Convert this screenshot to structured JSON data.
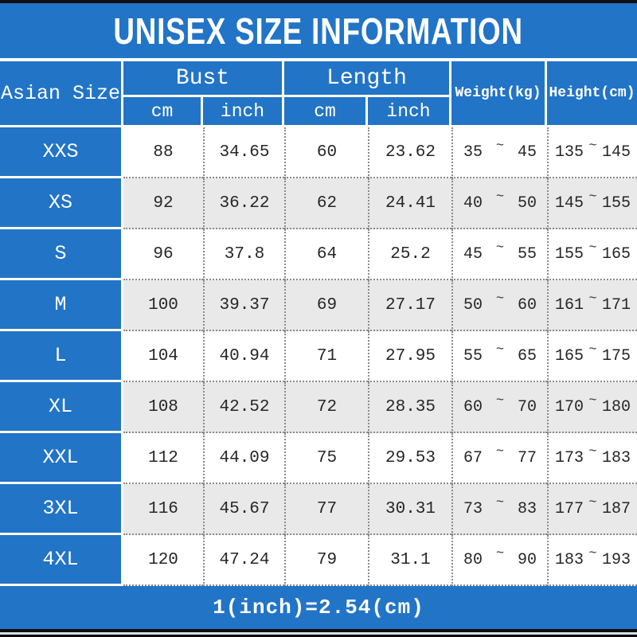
{
  "title": "UNISEX SIZE INFORMATION",
  "table": {
    "corner_header": "Asian Size",
    "bust_group": {
      "label": "Bust",
      "sub_cm": "cm",
      "sub_inch": "inch"
    },
    "length_group": {
      "label": "Length",
      "sub_cm": "cm",
      "sub_inch": "inch"
    },
    "weight_header": "Weight(kg)",
    "height_header": "Height(cm)",
    "range_separator": "~",
    "rows": [
      {
        "size": "XXS",
        "bust_cm": "88",
        "bust_inch": "34.65",
        "length_cm": "60",
        "length_inch": "23.62",
        "weight_min": "35",
        "weight_max": "45",
        "height_min": "135",
        "height_max": "145"
      },
      {
        "size": "XS",
        "bust_cm": "92",
        "bust_inch": "36.22",
        "length_cm": "62",
        "length_inch": "24.41",
        "weight_min": "40",
        "weight_max": "50",
        "height_min": "145",
        "height_max": "155"
      },
      {
        "size": "S",
        "bust_cm": "96",
        "bust_inch": "37.8",
        "length_cm": "64",
        "length_inch": "25.2",
        "weight_min": "45",
        "weight_max": "55",
        "height_min": "155",
        "height_max": "165"
      },
      {
        "size": "M",
        "bust_cm": "100",
        "bust_inch": "39.37",
        "length_cm": "69",
        "length_inch": "27.17",
        "weight_min": "50",
        "weight_max": "60",
        "height_min": "161",
        "height_max": "171"
      },
      {
        "size": "L",
        "bust_cm": "104",
        "bust_inch": "40.94",
        "length_cm": "71",
        "length_inch": "27.95",
        "weight_min": "55",
        "weight_max": "65",
        "height_min": "165",
        "height_max": "175"
      },
      {
        "size": "XL",
        "bust_cm": "108",
        "bust_inch": "42.52",
        "length_cm": "72",
        "length_inch": "28.35",
        "weight_min": "60",
        "weight_max": "70",
        "height_min": "170",
        "height_max": "180"
      },
      {
        "size": "XXL",
        "bust_cm": "112",
        "bust_inch": "44.09",
        "length_cm": "75",
        "length_inch": "29.53",
        "weight_min": "67",
        "weight_max": "77",
        "height_min": "173",
        "height_max": "183"
      },
      {
        "size": "3XL",
        "bust_cm": "116",
        "bust_inch": "45.67",
        "length_cm": "77",
        "length_inch": "30.31",
        "weight_min": "73",
        "weight_max": "83",
        "height_min": "177",
        "height_max": "187"
      },
      {
        "size": "4XL",
        "bust_cm": "120",
        "bust_inch": "47.24",
        "length_cm": "79",
        "length_inch": "31.1",
        "weight_min": "80",
        "weight_max": "90",
        "height_min": "183",
        "height_max": "193"
      }
    ]
  },
  "footer_note": "1(inch)=2.54(cm)",
  "colors": {
    "primary_blue": "#2274c6",
    "row_alt_gray": "#e9e9e9",
    "dotted_line": "#8a8a8a",
    "border_black": "#0f0f0f",
    "text_dark": "#262626",
    "text_white": "#ffffff"
  },
  "chart_data": {
    "type": "table",
    "title": "UNISEX SIZE INFORMATION",
    "columns": [
      "Asian Size",
      "Bust cm",
      "Bust inch",
      "Length cm",
      "Length inch",
      "Weight(kg)",
      "Height(cm)"
    ],
    "rows": [
      [
        "XXS",
        88,
        34.65,
        60,
        23.62,
        "35~45",
        "135~145"
      ],
      [
        "XS",
        92,
        36.22,
        62,
        24.41,
        "40~50",
        "145~155"
      ],
      [
        "S",
        96,
        37.8,
        64,
        25.2,
        "45~55",
        "155~165"
      ],
      [
        "M",
        100,
        39.37,
        69,
        27.17,
        "50~60",
        "161~171"
      ],
      [
        "L",
        104,
        40.94,
        71,
        27.95,
        "55~65",
        "165~175"
      ],
      [
        "XL",
        108,
        42.52,
        72,
        28.35,
        "60~70",
        "170~180"
      ],
      [
        "XXL",
        112,
        44.09,
        75,
        29.53,
        "67~77",
        "173~183"
      ],
      [
        "3XL",
        116,
        45.67,
        77,
        30.31,
        "73~83",
        "177~187"
      ],
      [
        "4XL",
        120,
        47.24,
        79,
        31.1,
        "80~90",
        "183~193"
      ]
    ],
    "note": "1(inch)=2.54(cm)"
  }
}
